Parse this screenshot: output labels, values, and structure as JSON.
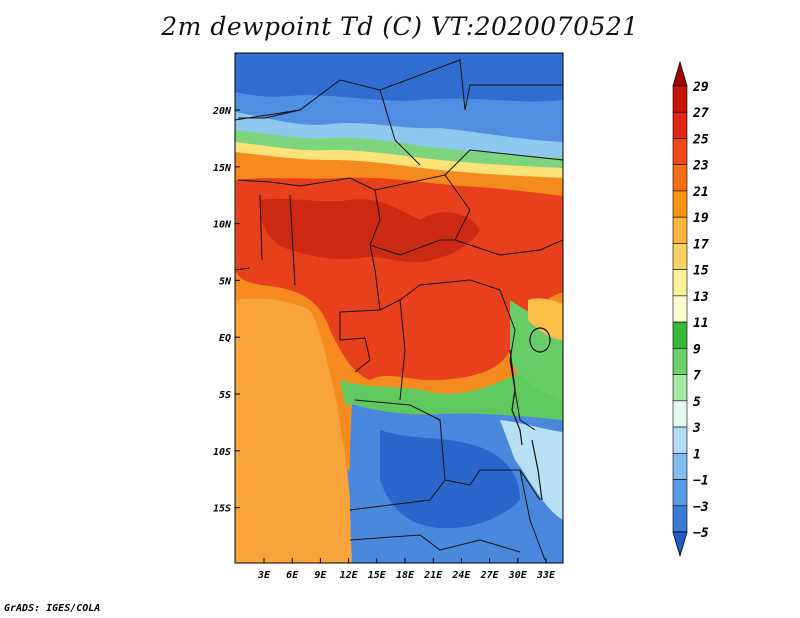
{
  "title": "2m dewpoint Td (C) VT:2020070521",
  "credit": "GrADS: IGES/COLA",
  "map": {
    "variable": "2m dewpoint",
    "units": "C",
    "valid_time": "2020070521",
    "lat_ticks": [
      "20N",
      "15N",
      "10N",
      "5N",
      "EQ",
      "5S",
      "10S",
      "15S"
    ],
    "lon_ticks": [
      "3E",
      "6E",
      "9E",
      "12E",
      "15E",
      "18E",
      "21E",
      "24E",
      "27E",
      "30E",
      "33E"
    ]
  },
  "colorbar": {
    "levels": [
      "29",
      "27",
      "25",
      "23",
      "21",
      "19",
      "17",
      "15",
      "13",
      "11",
      "9",
      "7",
      "5",
      "3",
      "1",
      "−1",
      "−3",
      "−5"
    ],
    "colors": [
      "#a50000",
      "#c8140a",
      "#e02814",
      "#ee4a1a",
      "#f46e14",
      "#f99414",
      "#fbb43c",
      "#fdd264",
      "#fdf09a",
      "#fffcd2",
      "#38b838",
      "#6ad26a",
      "#a4e8a4",
      "#e0f8f0",
      "#b0dcf4",
      "#82bcec",
      "#5a9ae4",
      "#3a7ad6",
      "#1e5ec8"
    ]
  }
}
